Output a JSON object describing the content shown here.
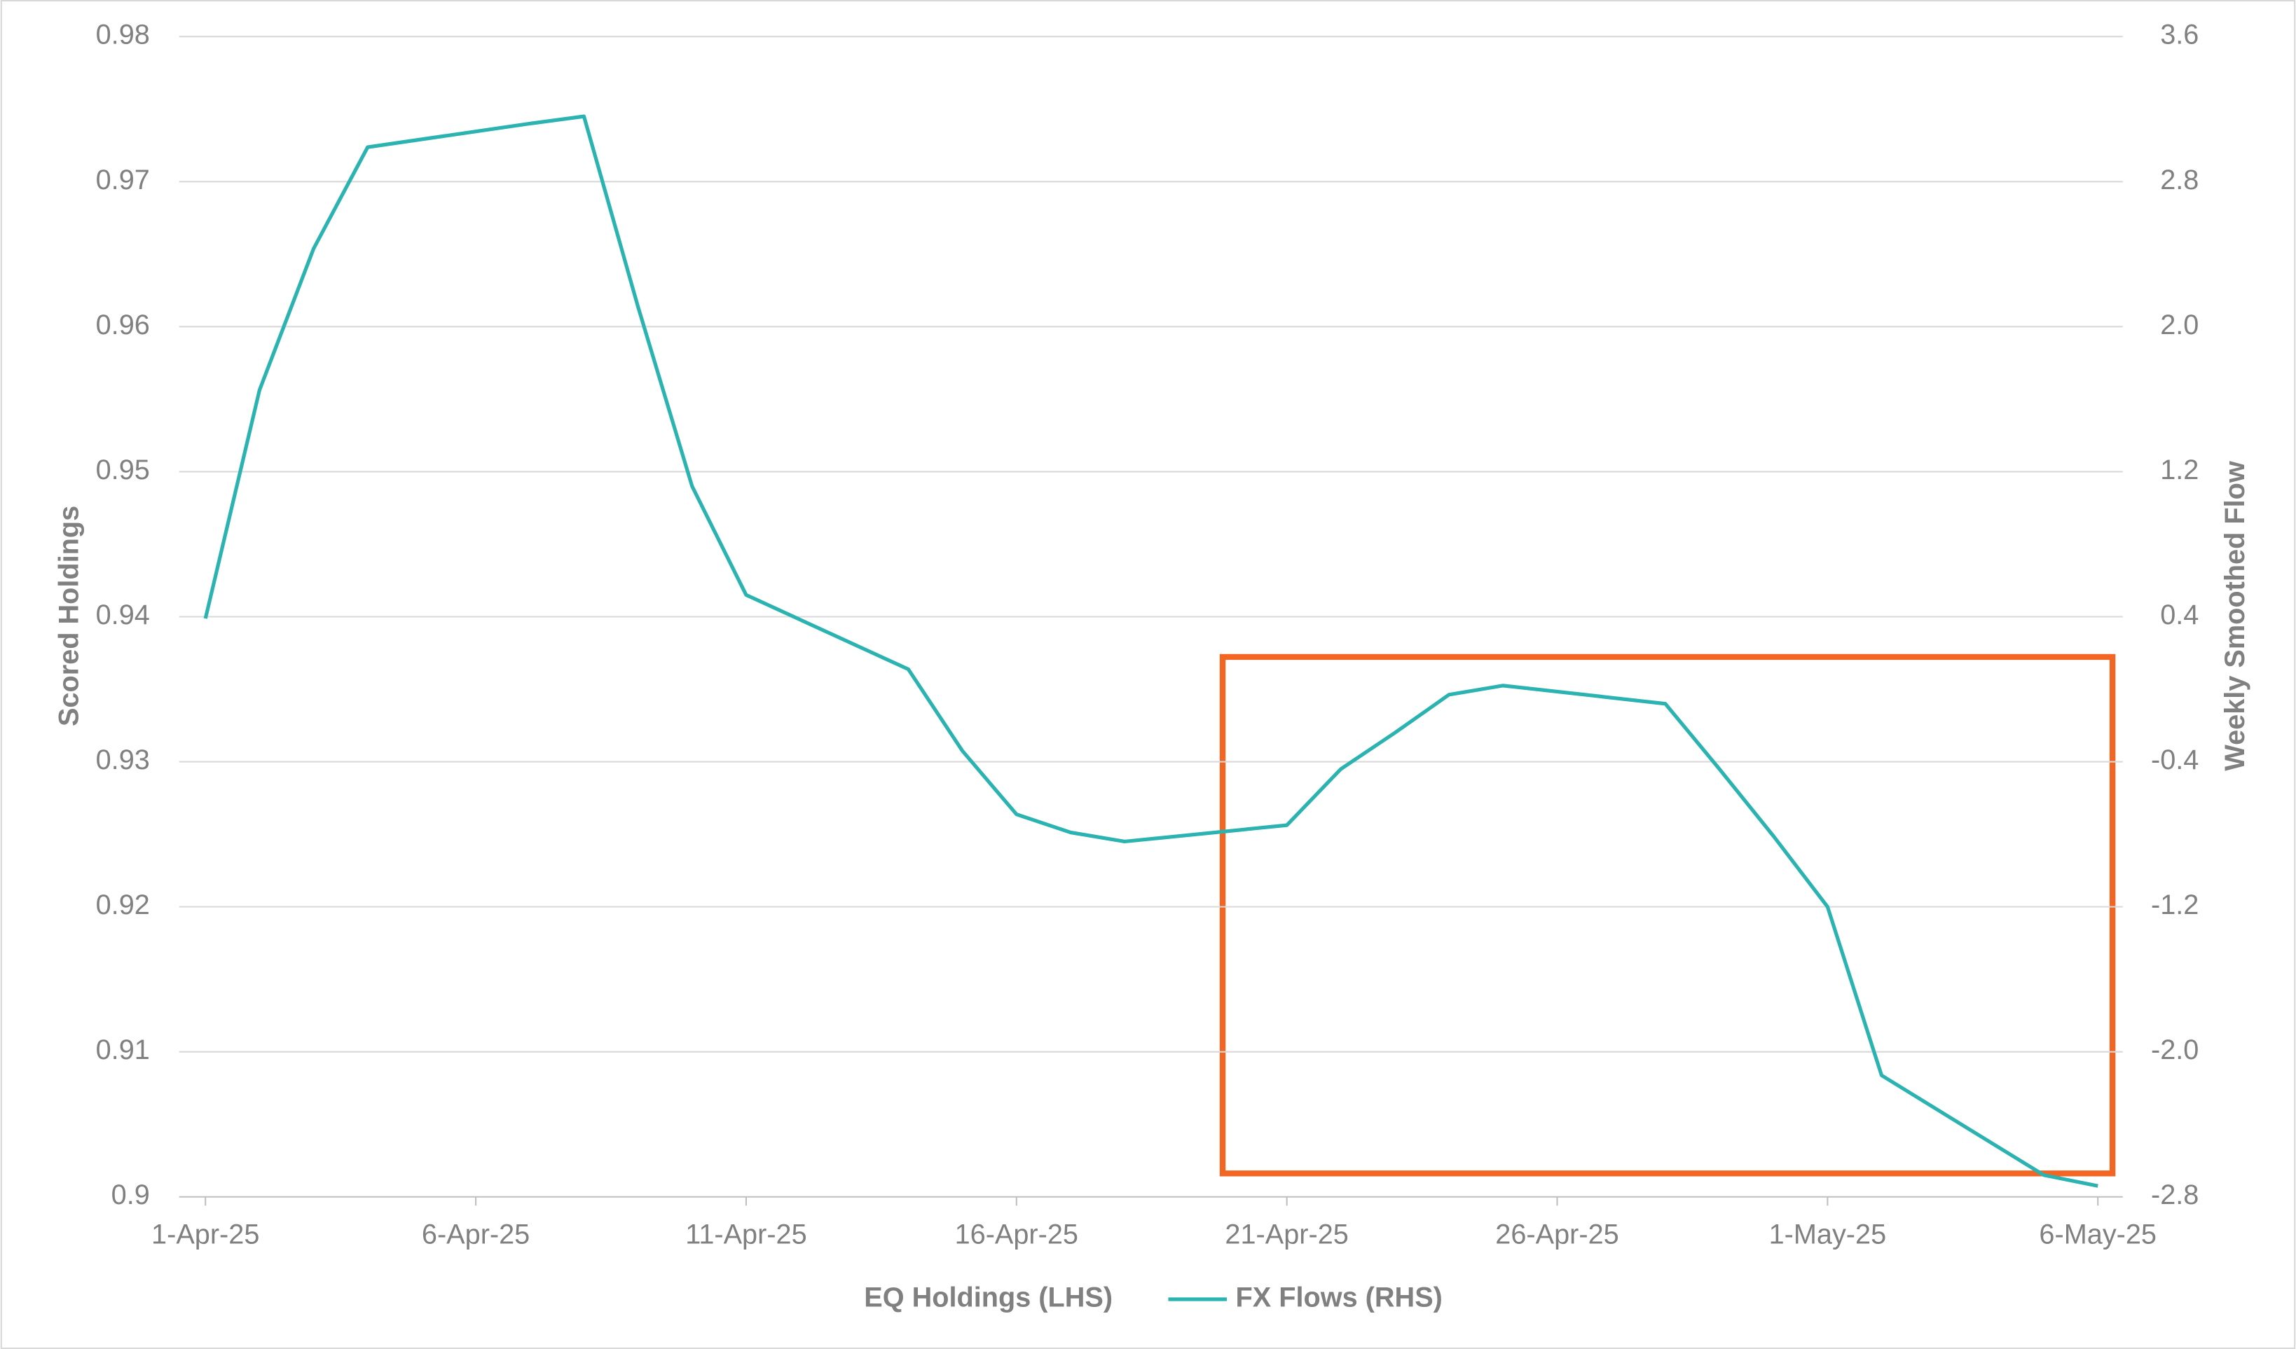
{
  "chart_data": {
    "type": "line",
    "ylabel": "Scored Holdings",
    "y2label": "Weekly Smoothed Flow",
    "x": [
      "2025-04-01",
      "2025-04-02",
      "2025-04-03",
      "2025-04-04",
      "2025-04-07",
      "2025-04-08",
      "2025-04-09",
      "2025-04-10",
      "2025-04-11",
      "2025-04-14",
      "2025-04-15",
      "2025-04-16",
      "2025-04-17",
      "2025-04-18",
      "2025-04-21",
      "2025-04-22",
      "2025-04-23",
      "2025-04-24",
      "2025-04-25",
      "2025-04-28",
      "2025-04-29",
      "2025-04-30",
      "2025-05-01",
      "2025-05-02",
      "2025-05-05",
      "2025-05-06"
    ],
    "series": [
      {
        "name": "EQ Holdings (LHS)",
        "values": [
          null,
          null,
          null,
          null,
          null,
          null,
          null,
          null,
          null,
          null,
          null,
          null,
          null,
          null,
          null,
          null,
          null,
          null,
          null,
          null,
          null,
          null,
          null,
          null,
          null,
          null
        ]
      },
      {
        "name": "FX Flows (RHS)",
        "color": "#2bb3b1",
        "axis": "y2",
        "values": [
          0.39,
          1.65,
          2.43,
          2.99,
          3.12,
          3.16,
          2.11,
          1.12,
          0.52,
          0.11,
          -0.34,
          -0.69,
          -0.79,
          -0.84,
          -0.75,
          -0.44,
          -0.24,
          -0.03,
          0.02,
          -0.08,
          -0.44,
          -0.81,
          -1.2,
          -2.13,
          -2.68,
          -2.74
        ]
      }
    ],
    "xlim": [
      "2025-04-01",
      "2025-05-06"
    ],
    "xticks": [
      {
        "value": "2025-04-01",
        "label": "1-Apr-25"
      },
      {
        "value": "2025-04-06",
        "label": "6-Apr-25"
      },
      {
        "value": "2025-04-11",
        "label": "11-Apr-25"
      },
      {
        "value": "2025-04-16",
        "label": "16-Apr-25"
      },
      {
        "value": "2025-04-21",
        "label": "21-Apr-25"
      },
      {
        "value": "2025-04-26",
        "label": "26-Apr-25"
      },
      {
        "value": "2025-05-01",
        "label": "1-May-25"
      },
      {
        "value": "2025-05-06",
        "label": "6-May-25"
      }
    ],
    "ylim": [
      0.9,
      0.98
    ],
    "yticks": [
      0.9,
      0.91,
      0.92,
      0.93,
      0.94,
      0.95,
      0.96,
      0.97,
      0.98
    ],
    "y2lim": [
      -2.8,
      3.6
    ],
    "y2ticks": [
      -2.8,
      {
        "value": -2,
        "label": "-2.0"
      },
      -1.2,
      -0.4,
      0.4,
      1.2,
      {
        "value": 2,
        "label": "2.0"
      },
      2.8,
      3.6
    ],
    "grid": true
  }
}
